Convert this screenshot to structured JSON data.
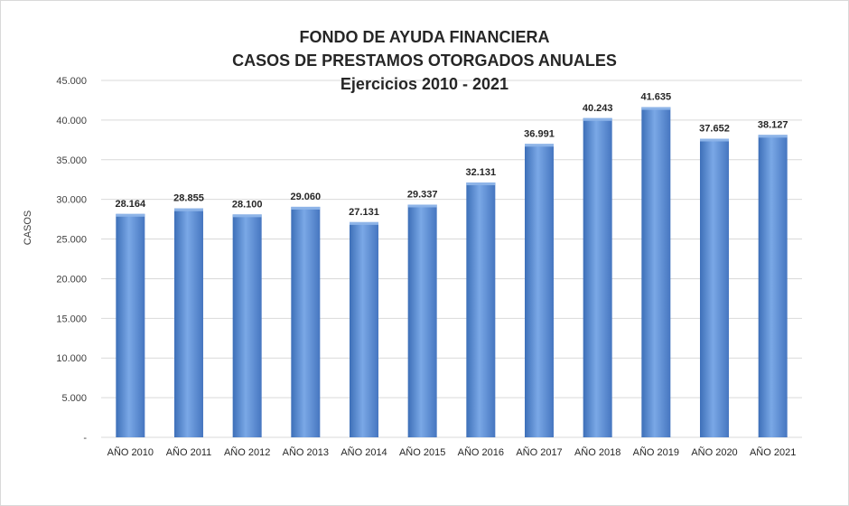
{
  "chart_data": {
    "type": "bar",
    "title": "FONDO DE AYUDA FINANCIERA",
    "subtitle": "CASOS DE PRESTAMOS OTORGADOS ANUALES",
    "period": "Ejercicios 2010 - 2021",
    "ylabel": "CASOS",
    "xlabel": "",
    "categories": [
      "AÑO 2010",
      "AÑO 2011",
      "AÑO 2012",
      "AÑO 2013",
      "AÑO 2014",
      "AÑO 2015",
      "AÑO 2016",
      "AÑO 2017",
      "AÑO 2018",
      "AÑO 2019",
      "AÑO 2020",
      "AÑO 2021"
    ],
    "values": [
      28164,
      28855,
      28100,
      29060,
      27131,
      29337,
      32131,
      36991,
      40243,
      41635,
      37652,
      38127
    ],
    "value_labels": [
      "28.164",
      "28.855",
      "28.100",
      "29.060",
      "27.131",
      "29.337",
      "32.131",
      "36.991",
      "40.243",
      "41.635",
      "37.652",
      "38.127"
    ],
    "ylim": [
      0,
      45000
    ],
    "yticks": [
      0,
      5000,
      10000,
      15000,
      20000,
      25000,
      30000,
      35000,
      40000,
      45000
    ],
    "ytick_labels": [
      "-",
      "5.000",
      "10.000",
      "15.000",
      "20.000",
      "25.000",
      "30.000",
      "35.000",
      "40.000",
      "45.000"
    ],
    "grid": true,
    "legend": "none",
    "colors": {
      "bar": "#5b8fd6",
      "bar_light": "#8db4e8",
      "bar_dark": "#3b6cb4",
      "grid": "#d9d9d9"
    }
  }
}
